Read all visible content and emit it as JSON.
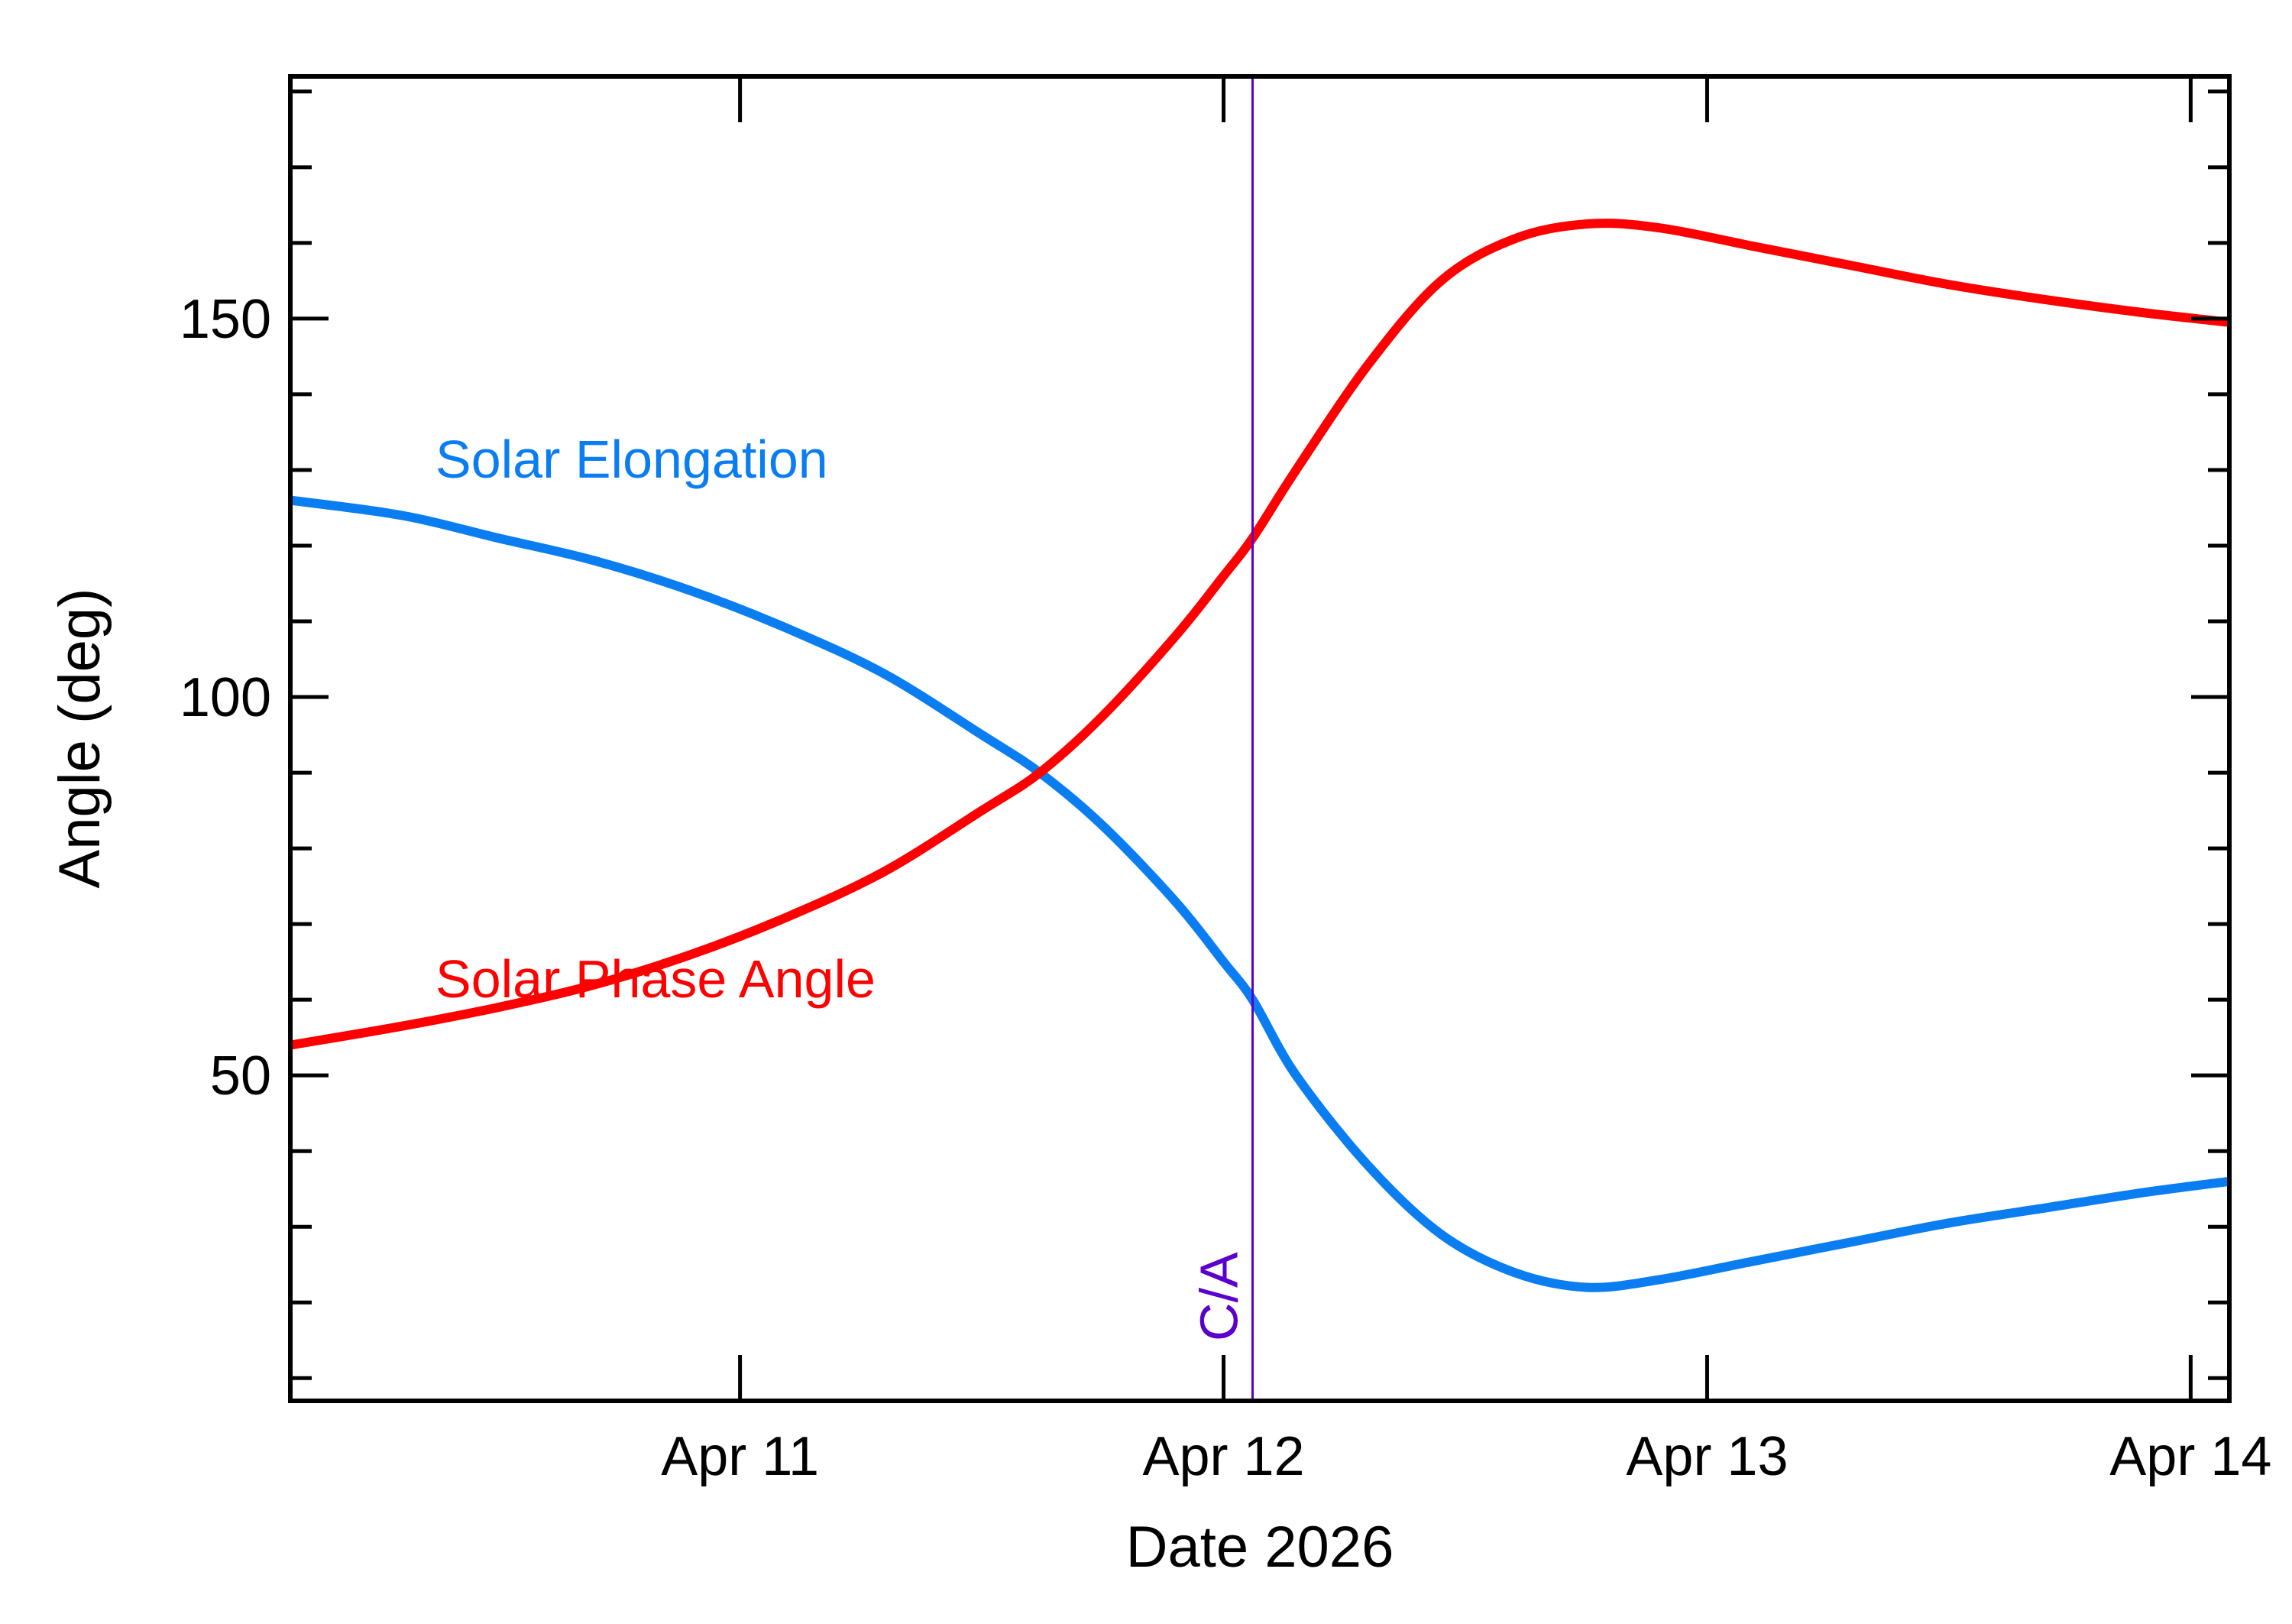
{
  "chart_data": {
    "type": "line",
    "xlabel": "Date 2026",
    "ylabel": "Angle (deg)",
    "x_unit": "days in April 2026",
    "xlim": [
      10.07,
      14.08
    ],
    "ylim": [
      7,
      182
    ],
    "x_ticks": [
      {
        "value": 11,
        "label": "Apr 11"
      },
      {
        "value": 12,
        "label": "Apr 12"
      },
      {
        "value": 13,
        "label": "Apr 13"
      },
      {
        "value": 14,
        "label": "Apr 14"
      }
    ],
    "y_ticks": [
      {
        "value": 50,
        "label": "50"
      },
      {
        "value": 100,
        "label": "100"
      },
      {
        "value": 150,
        "label": "150"
      }
    ],
    "grid": false,
    "series": [
      {
        "name": "Solar Elongation",
        "color": "#0a7df0",
        "x": [
          10.07,
          10.3,
          10.5,
          10.7,
          10.9,
          11.1,
          11.3,
          11.5,
          11.62,
          11.75,
          11.9,
          12.0,
          12.06,
          12.15,
          12.3,
          12.45,
          12.6,
          12.75,
          12.9,
          13.1,
          13.3,
          13.5,
          13.7,
          13.9,
          14.08
        ],
        "y": [
          126,
          124,
          121,
          118,
          114,
          109,
          103,
          95,
          90,
          83,
          73,
          65,
          60,
          50,
          38,
          29,
          24,
          22,
          23,
          25.5,
          28,
          30.5,
          32.5,
          34.5,
          36
        ]
      },
      {
        "name": "Solar Phase Angle",
        "color": "#ff0000",
        "x": [
          10.07,
          10.3,
          10.5,
          10.7,
          10.9,
          11.1,
          11.3,
          11.5,
          11.62,
          11.75,
          11.9,
          12.0,
          12.06,
          12.15,
          12.3,
          12.45,
          12.6,
          12.75,
          12.9,
          13.1,
          13.3,
          13.5,
          13.7,
          13.9,
          14.08
        ],
        "y": [
          54,
          56.5,
          59,
          62,
          66,
          71,
          77,
          85,
          90,
          97.5,
          108,
          116,
          121,
          130,
          144,
          155,
          160.5,
          162.5,
          162,
          159.5,
          157,
          154.5,
          152.5,
          150.8,
          149.5
        ]
      }
    ],
    "annotations": [
      {
        "text": "C/A",
        "x": 12.06,
        "color": "#5b00cc"
      }
    ]
  }
}
